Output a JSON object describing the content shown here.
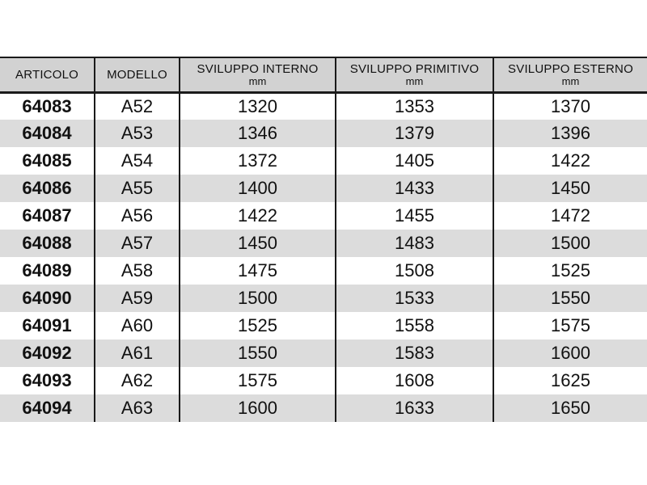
{
  "colors": {
    "header_bg": "#d2d2d2",
    "row_alt_bg": "#dcdcdc",
    "border": "#1a1a1a",
    "text": "#111111"
  },
  "table": {
    "columns": [
      {
        "key": "articolo",
        "label": "ARTICOLO",
        "unit": ""
      },
      {
        "key": "modello",
        "label": "MODELLO",
        "unit": ""
      },
      {
        "key": "sviluppo-interno",
        "label": "SVILUPPO INTERNO",
        "unit": "mm"
      },
      {
        "key": "sviluppo-primitivo",
        "label": "SVILUPPO PRIMITIVO",
        "unit": "mm"
      },
      {
        "key": "sviluppo-esterno",
        "label": "SVILUPPO ESTERNO",
        "unit": "mm"
      }
    ],
    "rows": [
      [
        "64083",
        "A52",
        "1320",
        "1353",
        "1370"
      ],
      [
        "64084",
        "A53",
        "1346",
        "1379",
        "1396"
      ],
      [
        "64085",
        "A54",
        "1372",
        "1405",
        "1422"
      ],
      [
        "64086",
        "A55",
        "1400",
        "1433",
        "1450"
      ],
      [
        "64087",
        "A56",
        "1422",
        "1455",
        "1472"
      ],
      [
        "64088",
        "A57",
        "1450",
        "1483",
        "1500"
      ],
      [
        "64089",
        "A58",
        "1475",
        "1508",
        "1525"
      ],
      [
        "64090",
        "A59",
        "1500",
        "1533",
        "1550"
      ],
      [
        "64091",
        "A60",
        "1525",
        "1558",
        "1575"
      ],
      [
        "64092",
        "A61",
        "1550",
        "1583",
        "1600"
      ],
      [
        "64093",
        "A62",
        "1575",
        "1608",
        "1625"
      ],
      [
        "64094",
        "A63",
        "1600",
        "1633",
        "1650"
      ]
    ]
  }
}
